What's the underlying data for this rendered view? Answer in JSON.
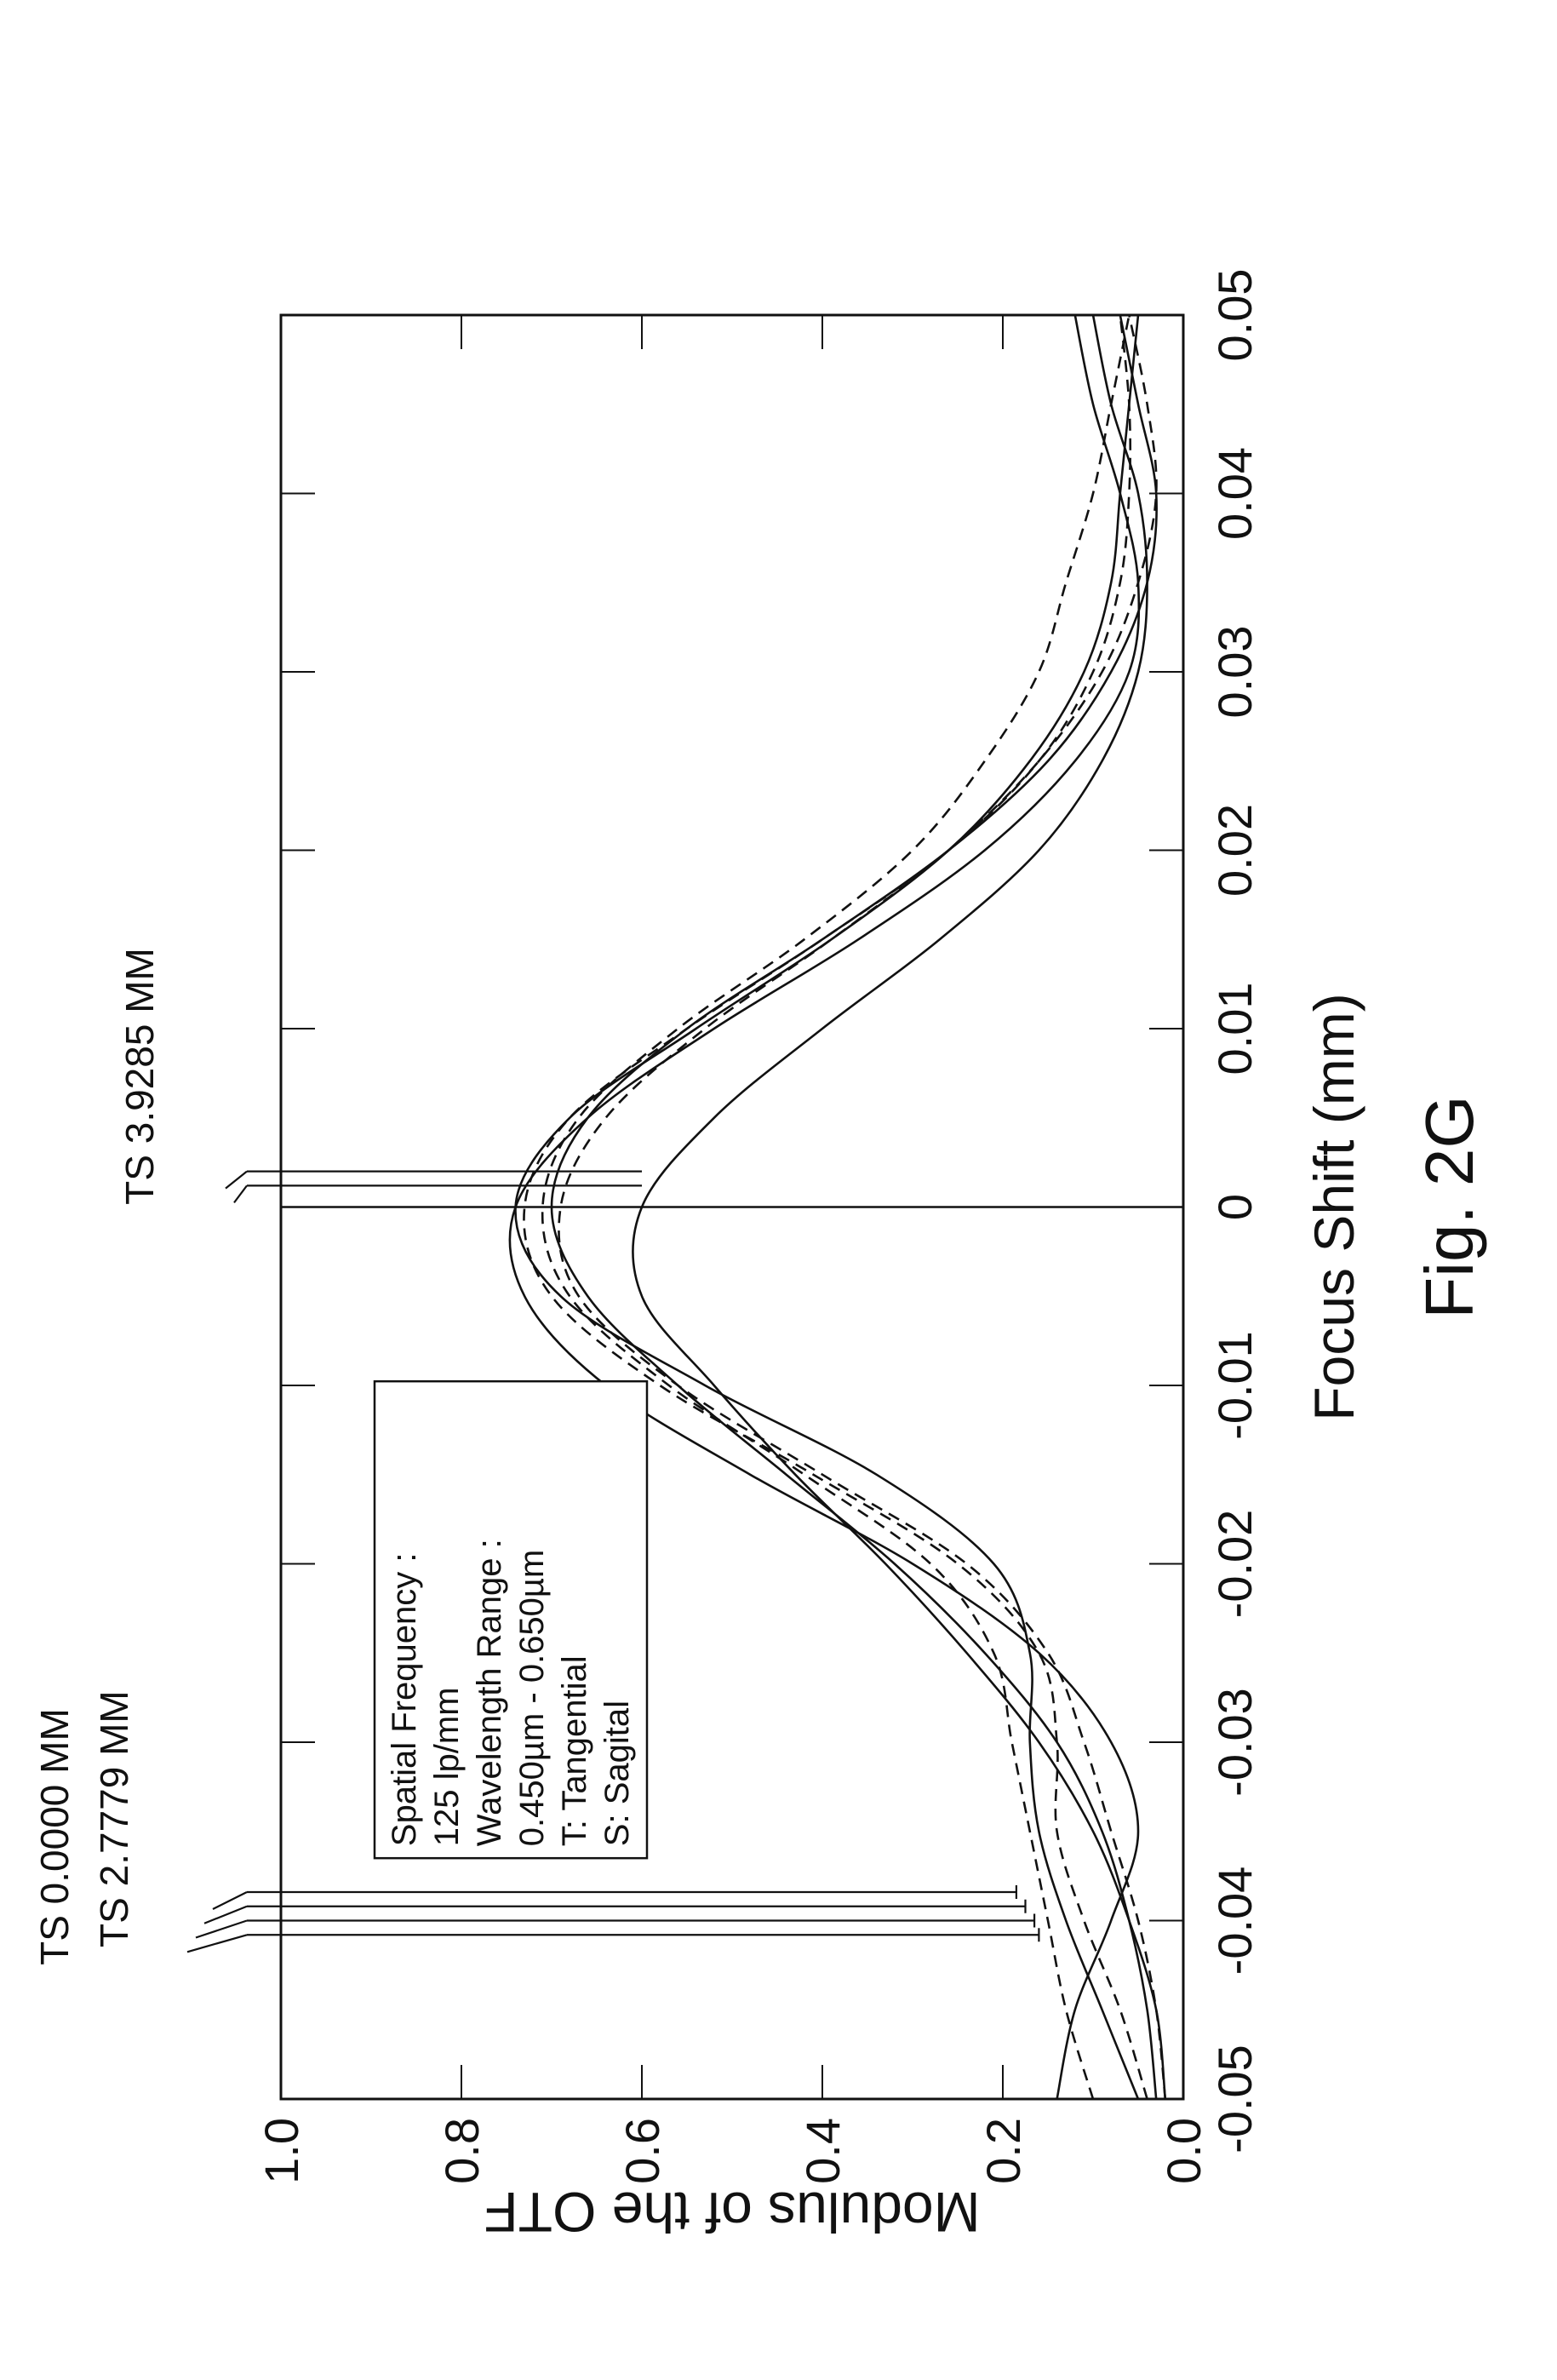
{
  "figure_label": "Fig. 2G",
  "chart_data": {
    "type": "line",
    "title": "",
    "xlabel": "Focus Shift (mm)",
    "ylabel": "Modulus of the OTF",
    "xlim": [
      -0.05,
      0.05
    ],
    "ylim": [
      0.0,
      1.0
    ],
    "x_ticks": [
      "-0.05",
      "-0.04",
      "-0.03",
      "-0.02",
      "-0.01",
      "0",
      "0.01",
      "0.02",
      "0.03",
      "0.04",
      "0.05"
    ],
    "y_ticks": [
      "0.0",
      "0.2",
      "0.4",
      "0.6",
      "0.8",
      "1.0"
    ],
    "grid": true,
    "legend": {
      "placement": "top-left",
      "lines": [
        "Spatial Frequency :",
        "125 lp/mm",
        "Wavelength Range :",
        "0.450µm - 0.650µm",
        "T:   Tangential",
        "S:   Sagital"
      ]
    },
    "field_labels": [
      "TS 0.0000 MM",
      "TS 2.7779 MM",
      "TS 3.9285 MM"
    ],
    "field_markers": [
      {
        "x": -0.0384,
        "y": 0.185
      },
      {
        "x": -0.0392,
        "y": 0.175
      },
      {
        "x": -0.04,
        "y": 0.165
      },
      {
        "x": -0.0408,
        "y": 0.16
      },
      {
        "x": 0.0012,
        "y": 0.6
      },
      {
        "x": 0.002,
        "y": 0.6
      }
    ],
    "series": [
      {
        "style": "solid",
        "x": [
          -0.05,
          -0.045,
          -0.04,
          -0.035,
          -0.03,
          -0.025,
          -0.02,
          -0.015,
          -0.01,
          -0.005,
          0,
          0.005,
          0.01,
          0.015,
          0.02,
          0.025,
          0.03,
          0.035,
          0.04,
          0.045,
          0.05
        ],
        "values": [
          0.02,
          0.03,
          0.06,
          0.1,
          0.16,
          0.24,
          0.33,
          0.43,
          0.52,
          0.6,
          0.6,
          0.52,
          0.4,
          0.27,
          0.16,
          0.09,
          0.05,
          0.04,
          0.05,
          0.08,
          0.1
        ]
      },
      {
        "style": "solid",
        "x": [
          -0.05,
          -0.045,
          -0.04,
          -0.035,
          -0.03,
          -0.025,
          -0.02,
          -0.015,
          -0.01,
          -0.005,
          0,
          0.005,
          0.01,
          0.015,
          0.02,
          0.025,
          0.03,
          0.035,
          0.04,
          0.045,
          0.05
        ],
        "values": [
          0.03,
          0.04,
          0.06,
          0.09,
          0.14,
          0.22,
          0.32,
          0.44,
          0.56,
          0.66,
          0.7,
          0.66,
          0.55,
          0.4,
          0.26,
          0.15,
          0.08,
          0.04,
          0.03,
          0.05,
          0.07
        ]
      },
      {
        "style": "solid",
        "x": [
          -0.05,
          -0.045,
          -0.04,
          -0.035,
          -0.03,
          -0.025,
          -0.02,
          -0.015,
          -0.01,
          -0.005,
          0,
          0.005,
          0.01,
          0.015,
          0.02,
          0.025,
          0.03,
          0.035,
          0.04,
          0.045,
          0.05
        ],
        "values": [
          0.14,
          0.12,
          0.08,
          0.05,
          0.08,
          0.16,
          0.3,
          0.48,
          0.64,
          0.73,
          0.74,
          0.66,
          0.52,
          0.36,
          0.22,
          0.12,
          0.06,
          0.05,
          0.07,
          0.1,
          0.12
        ]
      },
      {
        "style": "solid",
        "x": [
          -0.05,
          -0.045,
          -0.04,
          -0.035,
          -0.03,
          -0.025,
          -0.02,
          -0.015,
          -0.01,
          -0.005,
          0,
          0.005,
          0.01,
          0.015,
          0.02,
          0.025,
          0.03,
          0.035,
          0.04,
          0.045,
          0.05
        ],
        "values": [
          0.05,
          0.09,
          0.13,
          0.16,
          0.17,
          0.17,
          0.21,
          0.34,
          0.53,
          0.69,
          0.74,
          0.68,
          0.54,
          0.39,
          0.26,
          0.17,
          0.11,
          0.08,
          0.07,
          0.06,
          0.05
        ]
      },
      {
        "style": "dashed",
        "x": [
          -0.05,
          -0.045,
          -0.04,
          -0.035,
          -0.03,
          -0.025,
          -0.02,
          -0.015,
          -0.01,
          -0.005,
          0,
          0.005,
          0.01,
          0.015,
          0.02,
          0.025,
          0.03,
          0.035,
          0.04,
          0.045,
          0.05
        ],
        "values": [
          0.04,
          0.07,
          0.11,
          0.14,
          0.14,
          0.16,
          0.25,
          0.41,
          0.58,
          0.7,
          0.73,
          0.68,
          0.55,
          0.4,
          0.26,
          0.16,
          0.1,
          0.07,
          0.06,
          0.06,
          0.07
        ]
      },
      {
        "style": "dashed",
        "x": [
          -0.05,
          -0.045,
          -0.04,
          -0.035,
          -0.03,
          -0.025,
          -0.02,
          -0.015,
          -0.01,
          -0.005,
          0,
          0.005,
          0.01,
          0.015,
          0.02,
          0.025,
          0.03,
          0.035,
          0.04,
          0.045,
          0.05
        ],
        "values": [
          0.1,
          0.13,
          0.15,
          0.17,
          0.19,
          0.21,
          0.28,
          0.42,
          0.57,
          0.68,
          0.71,
          0.67,
          0.56,
          0.42,
          0.3,
          0.22,
          0.16,
          0.13,
          0.1,
          0.08,
          0.06
        ]
      },
      {
        "style": "dashed",
        "x": [
          -0.05,
          -0.045,
          -0.04,
          -0.035,
          -0.03,
          -0.025,
          -0.02,
          -0.015,
          -0.01,
          -0.005,
          0,
          0.005,
          0.01,
          0.015,
          0.02,
          0.025,
          0.03,
          0.035,
          0.04,
          0.045,
          0.05
        ],
        "values": [
          0.02,
          0.03,
          0.05,
          0.08,
          0.11,
          0.15,
          0.24,
          0.4,
          0.56,
          0.67,
          0.69,
          0.64,
          0.53,
          0.39,
          0.26,
          0.16,
          0.09,
          0.05,
          0.03,
          0.04,
          0.06
        ]
      }
    ]
  }
}
